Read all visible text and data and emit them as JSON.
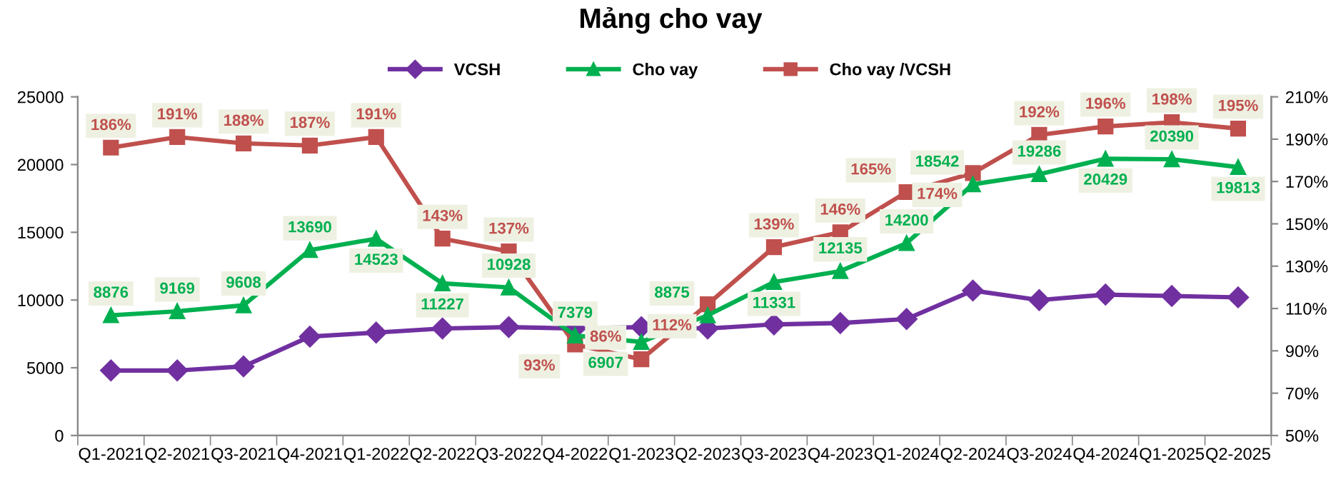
{
  "chart_data": {
    "type": "line",
    "title": "Mảng cho vay",
    "categories": [
      "Q1-2021",
      "Q2-2021",
      "Q3-2021",
      "Q4-2021",
      "Q1-2022",
      "Q2-2022",
      "Q3-2022",
      "Q4-2022",
      "Q1-2023",
      "Q2-2023",
      "Q3-2023",
      "Q4-2023",
      "Q1-2024",
      "Q2-2024",
      "Q3-2024",
      "Q4-2024",
      "Q1-2025",
      "Q2-2025"
    ],
    "series": [
      {
        "name": "VCSH",
        "color": "#7030a0",
        "marker": "diamond",
        "values": [
          4800,
          4800,
          5100,
          7300,
          7600,
          7900,
          8000,
          7900,
          8000,
          7900,
          8200,
          8300,
          8600,
          10700,
          10000,
          10400,
          10300,
          10200
        ]
      },
      {
        "name": "Cho vay",
        "color": "#00b050",
        "marker": "triangle",
        "values": [
          8876,
          9169,
          9608,
          13690,
          14523,
          11227,
          10928,
          7379,
          6907,
          8875,
          11331,
          12135,
          14200,
          18542,
          19286,
          20429,
          20390,
          19813
        ],
        "value_labels": [
          "8876",
          "9169",
          "9608",
          "13690",
          "14523",
          "11227",
          "10928",
          "7379",
          "6907",
          "8875",
          "11331",
          "12135",
          "14200",
          "18542",
          "19286",
          "20429",
          "20390",
          "19813"
        ]
      },
      {
        "name": "Cho vay /VCSH",
        "color": "#c0504d",
        "marker": "square",
        "axis": "y2",
        "values": [
          186,
          191,
          188,
          187,
          191,
          143,
          137,
          93,
          86,
          112,
          139,
          146,
          165,
          174,
          192,
          196,
          198,
          195
        ],
        "value_labels": [
          "186%",
          "191%",
          "188%",
          "187%",
          "191%",
          "143%",
          "137%",
          "93%",
          "86%",
          "112%",
          "139%",
          "146%",
          "165%",
          "174%",
          "192%",
          "196%",
          "198%",
          "195%"
        ]
      }
    ],
    "ylim": [
      0,
      25000
    ],
    "yticks": [
      0,
      5000,
      10000,
      15000,
      20000,
      25000
    ],
    "y2lim": [
      50,
      210
    ],
    "y2ticks": [
      {
        "value": 50,
        "label": "50%"
      },
      {
        "value": 70,
        "label": "70%"
      },
      {
        "value": 90,
        "label": "90%"
      },
      {
        "value": 110,
        "label": "110%"
      },
      {
        "value": 130,
        "label": "130%"
      },
      {
        "value": 150,
        "label": "150%"
      },
      {
        "value": 170,
        "label": "170%"
      },
      {
        "value": 190,
        "label": "190%"
      },
      {
        "value": 210,
        "label": "210%"
      }
    ],
    "grid": false,
    "legend": "top",
    "line_style": "solid"
  }
}
